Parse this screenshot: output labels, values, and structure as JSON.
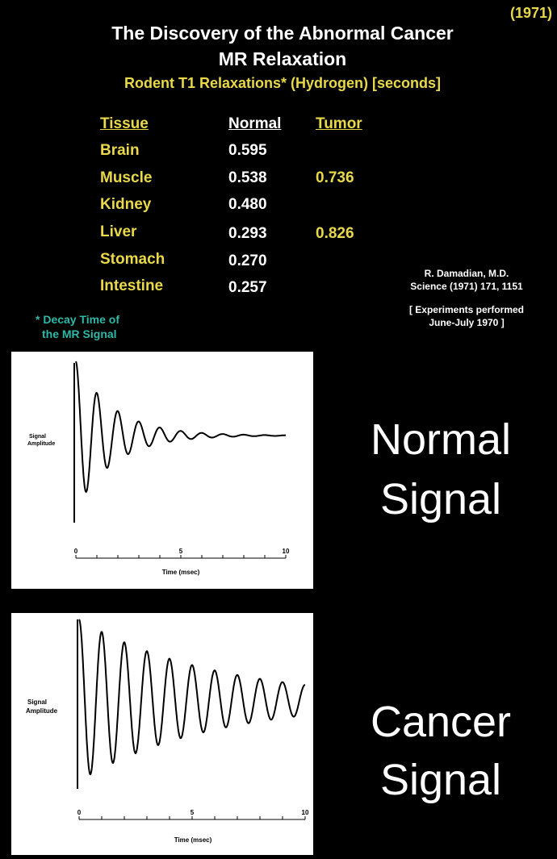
{
  "year": "(1971)",
  "title_line1": "The Discovery of the Abnormal Cancer",
  "title_line2": "MR Relaxation",
  "subtitle": "Rodent T1 Relaxations* (Hydrogen)  [seconds]",
  "table": {
    "headers": {
      "tissue": "Tissue",
      "normal": "Normal",
      "tumor": "Tumor"
    },
    "rows": [
      {
        "tissue": "Brain",
        "normal": "0.595",
        "tumor": ""
      },
      {
        "tissue": "Muscle",
        "normal": "0.538",
        "tumor": "0.736"
      },
      {
        "tissue": "Kidney",
        "normal": "0.480",
        "tumor": ""
      },
      {
        "tissue": "Liver",
        "normal": "0.293",
        "tumor": "0.826"
      },
      {
        "tissue": "Stomach",
        "normal": "0.270",
        "tumor": ""
      },
      {
        "tissue": "Intestine",
        "normal": "0.257",
        "tumor": ""
      }
    ]
  },
  "reference": {
    "author": "R. Damadian, M.D.",
    "citation": "Science (1971) 171, 1151",
    "experiments1": "[ Experiments performed",
    "experiments2": "June-July 1970 ]"
  },
  "footnote": {
    "line1": "* Decay Time of",
    "line2": "the MR Signal"
  },
  "normal_label": {
    "line1": "Normal",
    "line2": "Signal"
  },
  "cancer_label": {
    "line1": "Cancer",
    "line2": "Signal"
  },
  "chart_data": [
    {
      "type": "line",
      "title": "",
      "xlabel": "Time (msec)",
      "ylabel": "Signal Amplitude",
      "xlim": [
        0,
        10
      ],
      "xticks": [
        "0",
        "5",
        "10"
      ],
      "series": [
        {
          "amplitude": 1.0,
          "decay_tau_msec": 1.8,
          "cycles_per_msec": 1.0
        }
      ]
    },
    {
      "type": "line",
      "title": "",
      "xlabel": "Time (msec)",
      "ylabel": "Signal Amplitude",
      "xlim": [
        0,
        10
      ],
      "xticks": [
        "0",
        "5",
        "10"
      ],
      "series": [
        {
          "amplitude": 1.0,
          "decay_tau_msec": 6.0,
          "cycles_per_msec": 1.0
        }
      ]
    }
  ]
}
